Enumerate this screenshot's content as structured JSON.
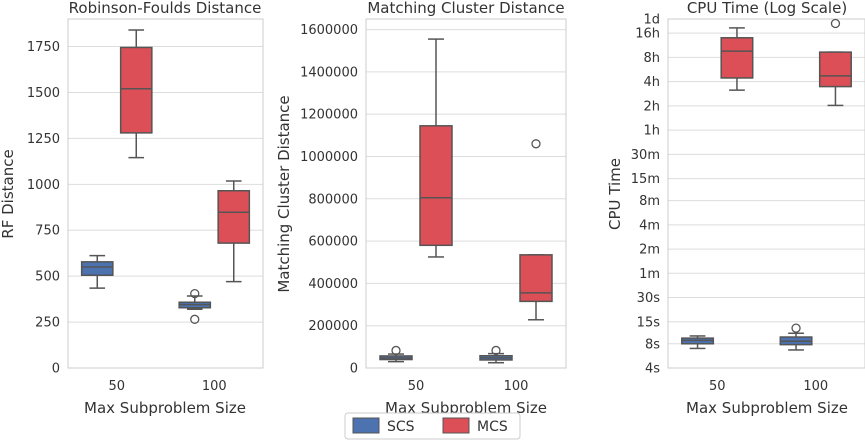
{
  "legend": {
    "entries": [
      {
        "label": "SCS",
        "color": "#4c72b0"
      },
      {
        "label": "MCS",
        "color": "#dd4f56"
      }
    ]
  },
  "chart_data": [
    {
      "type": "box",
      "title": "Robinson-Foulds Distance",
      "xlabel": "Max Subproblem Size",
      "ylabel": "RF Distance",
      "categories": [
        "50",
        "100"
      ],
      "ylim": [
        0,
        1900
      ],
      "yticks": [
        0,
        250,
        500,
        750,
        1000,
        1250,
        1500,
        1750
      ],
      "ytick_labels": [
        "0",
        "250",
        "500",
        "750",
        "1000",
        "1250",
        "1500",
        "1750"
      ],
      "grid": true,
      "series": [
        {
          "name": "SCS",
          "color": "#4c72b0",
          "boxes": [
            {
              "category": "50",
              "whislo": 435,
              "q1": 505,
              "med": 550,
              "q3": 578,
              "whishi": 612,
              "fliers": []
            },
            {
              "category": "100",
              "whislo": 320,
              "q1": 328,
              "med": 345,
              "q3": 358,
              "whishi": 392,
              "fliers": [
                265,
                405
              ]
            }
          ]
        },
        {
          "name": "MCS",
          "color": "#dd4f56",
          "boxes": [
            {
              "category": "50",
              "whislo": 1145,
              "q1": 1280,
              "med": 1520,
              "q3": 1745,
              "whishi": 1840,
              "fliers": []
            },
            {
              "category": "100",
              "whislo": 470,
              "q1": 680,
              "med": 848,
              "q3": 965,
              "whishi": 1018,
              "fliers": []
            }
          ]
        }
      ]
    },
    {
      "type": "box",
      "title": "Matching Cluster Distance",
      "xlabel": "Max Subproblem Size",
      "ylabel": "Matching Cluster Distance",
      "categories": [
        "50",
        "100"
      ],
      "ylim": [
        0,
        1650000
      ],
      "yticks": [
        0,
        200000,
        400000,
        600000,
        800000,
        1000000,
        1200000,
        1400000,
        1600000
      ],
      "ytick_labels": [
        "0",
        "200000",
        "400000",
        "600000",
        "800000",
        "1000000",
        "1200000",
        "1400000",
        "1600000"
      ],
      "grid": true,
      "series": [
        {
          "name": "SCS",
          "color": "#4c72b0",
          "boxes": [
            {
              "category": "50",
              "whislo": 30000,
              "q1": 40000,
              "med": 47000,
              "q3": 57000,
              "whishi": 66000,
              "fliers": [
                83000
              ]
            },
            {
              "category": "100",
              "whislo": 25000,
              "q1": 38000,
              "med": 48000,
              "q3": 58000,
              "whishi": 68000,
              "fliers": [
                83000
              ]
            }
          ]
        },
        {
          "name": "MCS",
          "color": "#dd4f56",
          "boxes": [
            {
              "category": "50",
              "whislo": 525000,
              "q1": 580000,
              "med": 805000,
              "q3": 1145000,
              "whishi": 1555000,
              "fliers": []
            },
            {
              "category": "100",
              "whislo": 228000,
              "q1": 315000,
              "med": 355000,
              "q3": 535000,
              "whishi": 535000,
              "fliers": [
                1060000
              ]
            }
          ]
        }
      ]
    },
    {
      "type": "box",
      "title": "CPU Time (Log Scale)",
      "xlabel": "Max Subproblem Size",
      "ylabel": "CPU Time",
      "categories": [
        "50",
        "100"
      ],
      "yscale": "log",
      "ylim": [
        4,
        86400
      ],
      "yticks": [
        4,
        8,
        15,
        30,
        60,
        120,
        240,
        480,
        900,
        1800,
        3600,
        7200,
        14400,
        28800,
        57600,
        86400
      ],
      "ytick_labels": [
        "4s",
        "8s",
        "15s",
        "30s",
        "1m",
        "2m",
        "4m",
        "8m",
        "15m",
        "30m",
        "1h",
        "2h",
        "4h",
        "8h",
        "16h",
        "1d"
      ],
      "grid": true,
      "series": [
        {
          "name": "SCS",
          "color": "#4c72b0",
          "boxes": [
            {
              "category": "50",
              "whislo": 7,
              "q1": 8,
              "med": 8.8,
              "q3": 9.4,
              "whishi": 10,
              "fliers": []
            },
            {
              "category": "100",
              "whislo": 6.7,
              "q1": 7.8,
              "med": 8.6,
              "q3": 9.7,
              "whishi": 10.8,
              "fliers": [
                12.5
              ]
            }
          ]
        },
        {
          "name": "MCS",
          "color": "#dd4f56",
          "boxes": [
            {
              "category": "50",
              "whislo": 11300,
              "q1": 16000,
              "med": 34500,
              "q3": 50500,
              "whishi": 67000,
              "fliers": []
            },
            {
              "category": "100",
              "whislo": 7300,
              "q1": 12500,
              "med": 17000,
              "q3": 33500,
              "whishi": 33500,
              "fliers": [
                76000
              ]
            }
          ]
        }
      ]
    }
  ]
}
